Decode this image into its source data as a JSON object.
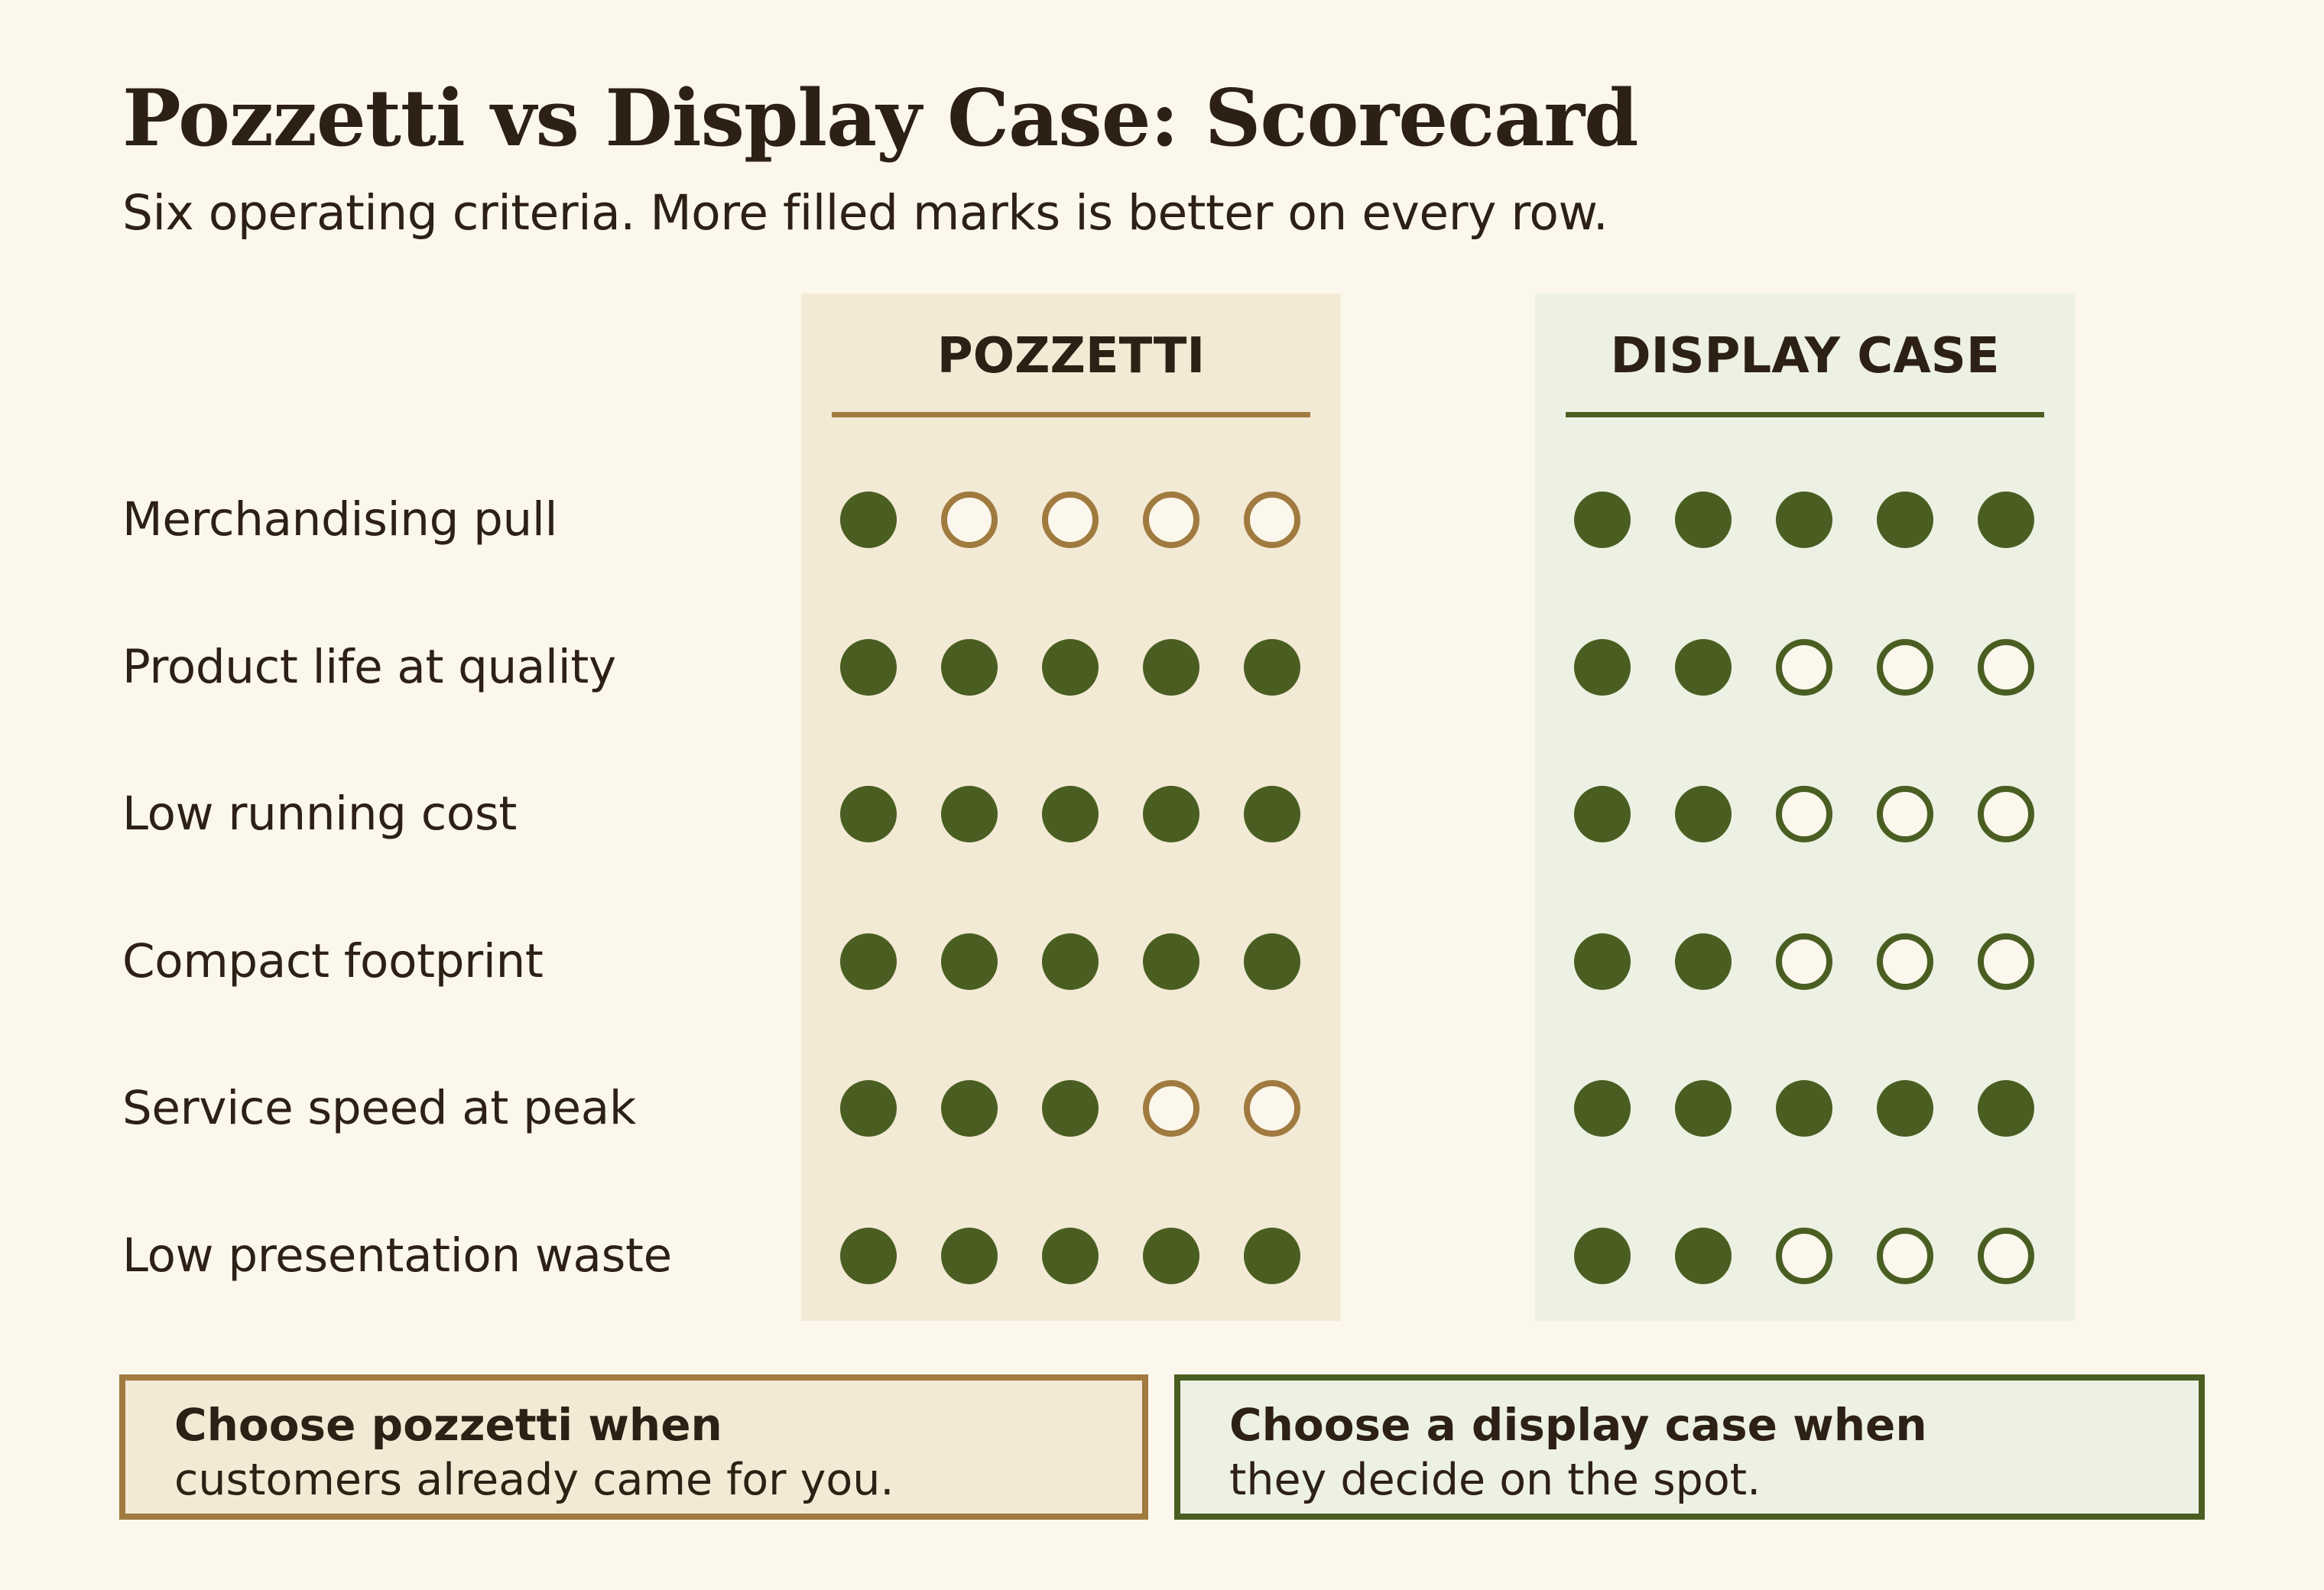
{
  "title": "Pozzetti vs Display Case: Scorecard",
  "subtitle": "Six operating criteria. More filled marks is better on every row.",
  "colors": {
    "filled": "#4a5e22",
    "pozzetti_accent": "#a07a3f",
    "display_accent": "#4a5e22",
    "pozzetti_bg": "#f3ead5",
    "display_bg": "#edf1e3"
  },
  "chart_data": {
    "type": "table",
    "max_score": 5,
    "columns": [
      "POZZETTI",
      "DISPLAY CASE"
    ],
    "rows": [
      {
        "label": "Merchandising pull",
        "scores": [
          1,
          5
        ]
      },
      {
        "label": "Product life at quality",
        "scores": [
          5,
          2
        ]
      },
      {
        "label": "Low running cost",
        "scores": [
          5,
          2
        ]
      },
      {
        "label": "Compact footprint",
        "scores": [
          5,
          2
        ]
      },
      {
        "label": "Service speed at peak",
        "scores": [
          3,
          5
        ]
      },
      {
        "label": "Low presentation waste",
        "scores": [
          5,
          2
        ]
      }
    ]
  },
  "callouts": {
    "pozzetti": {
      "title": "Choose pozzetti when",
      "text": "customers already came for you."
    },
    "display": {
      "title": "Choose a display case when",
      "text": "they decide on the spot."
    }
  }
}
